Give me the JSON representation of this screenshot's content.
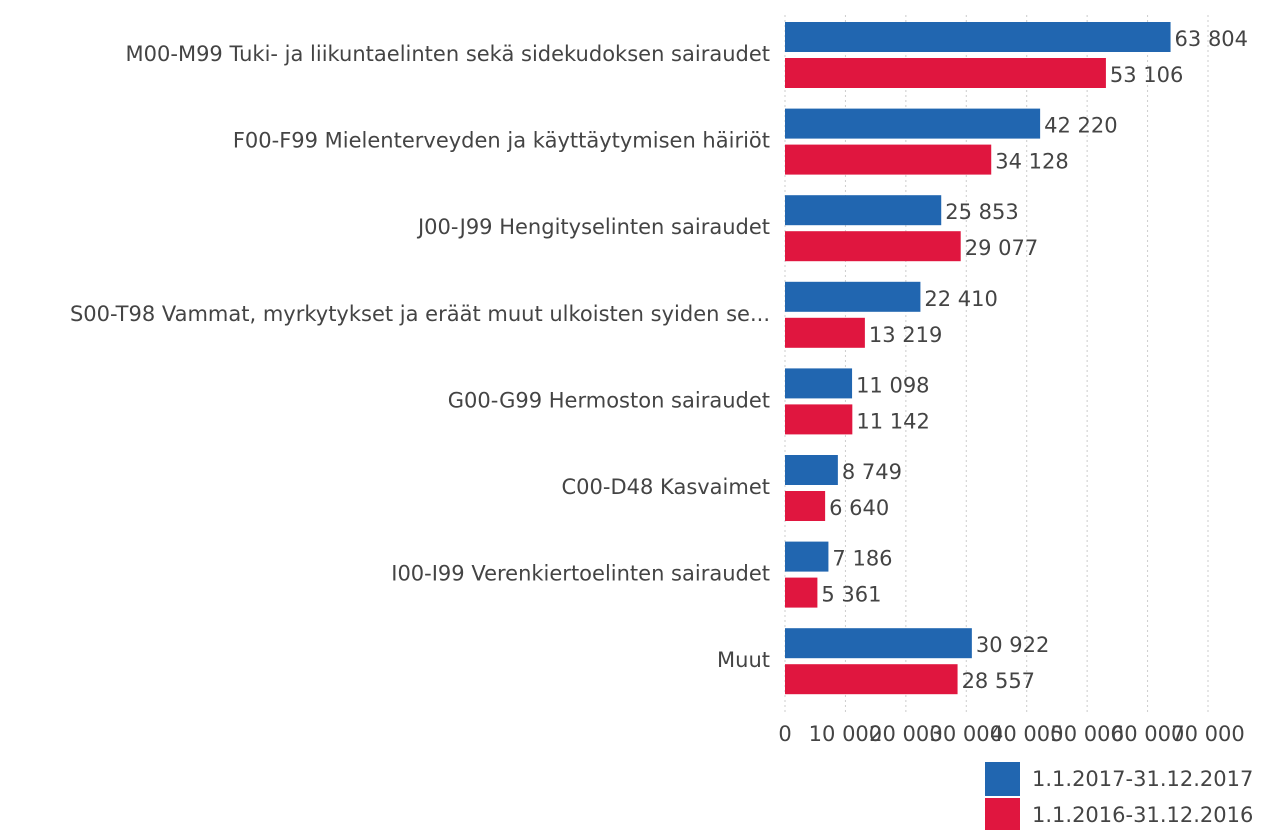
{
  "chart_data": {
    "type": "hbar",
    "categories": [
      "M00-M99 Tuki- ja liikuntaelinten sekä sidekudoksen sairaudet",
      "F00-F99 Mielenterveyden ja käyttäytymisen häiriöt",
      "J00-J99 Hengityselinten sairaudet",
      "S00-T98 Vammat, myrkytykset ja eräät muut ulkoisten syiden se...",
      "G00-G99 Hermoston sairaudet",
      "C00-D48 Kasvaimet",
      "I00-I99 Verenkiertoelinten sairaudet",
      "Muut"
    ],
    "series": [
      {
        "name": "1.1.2017-31.12.2017",
        "color": "#2166b0",
        "values": [
          63804,
          42220,
          25853,
          22410,
          11098,
          8749,
          7186,
          30922
        ],
        "value_labels": [
          "63 804",
          "42 220",
          "25 853",
          "22 410",
          "11 098",
          "8 749",
          "7 186",
          "30 922"
        ]
      },
      {
        "name": "1.1.2016-31.12.2016",
        "color": "#e0163f",
        "values": [
          53106,
          34128,
          29077,
          13219,
          11142,
          6640,
          5361,
          28557
        ],
        "value_labels": [
          "53 106",
          "34 128",
          "29 077",
          "13 219",
          "11 142",
          "6 640",
          "5 361",
          "28 557"
        ]
      }
    ],
    "xlim": [
      0,
      70000
    ],
    "xticks": [
      0,
      {
        "value": 10000,
        "label": "10 000"
      },
      {
        "value": 20000,
        "label": "20 000"
      },
      {
        "value": 30000,
        "label": "30 000"
      },
      {
        "value": 40000,
        "label": "40 000"
      },
      {
        "value": 50000,
        "label": "50 000"
      },
      {
        "value": 60000,
        "label": "60 000"
      },
      {
        "value": 70000,
        "label": "70 000"
      }
    ],
    "grid": true
  }
}
